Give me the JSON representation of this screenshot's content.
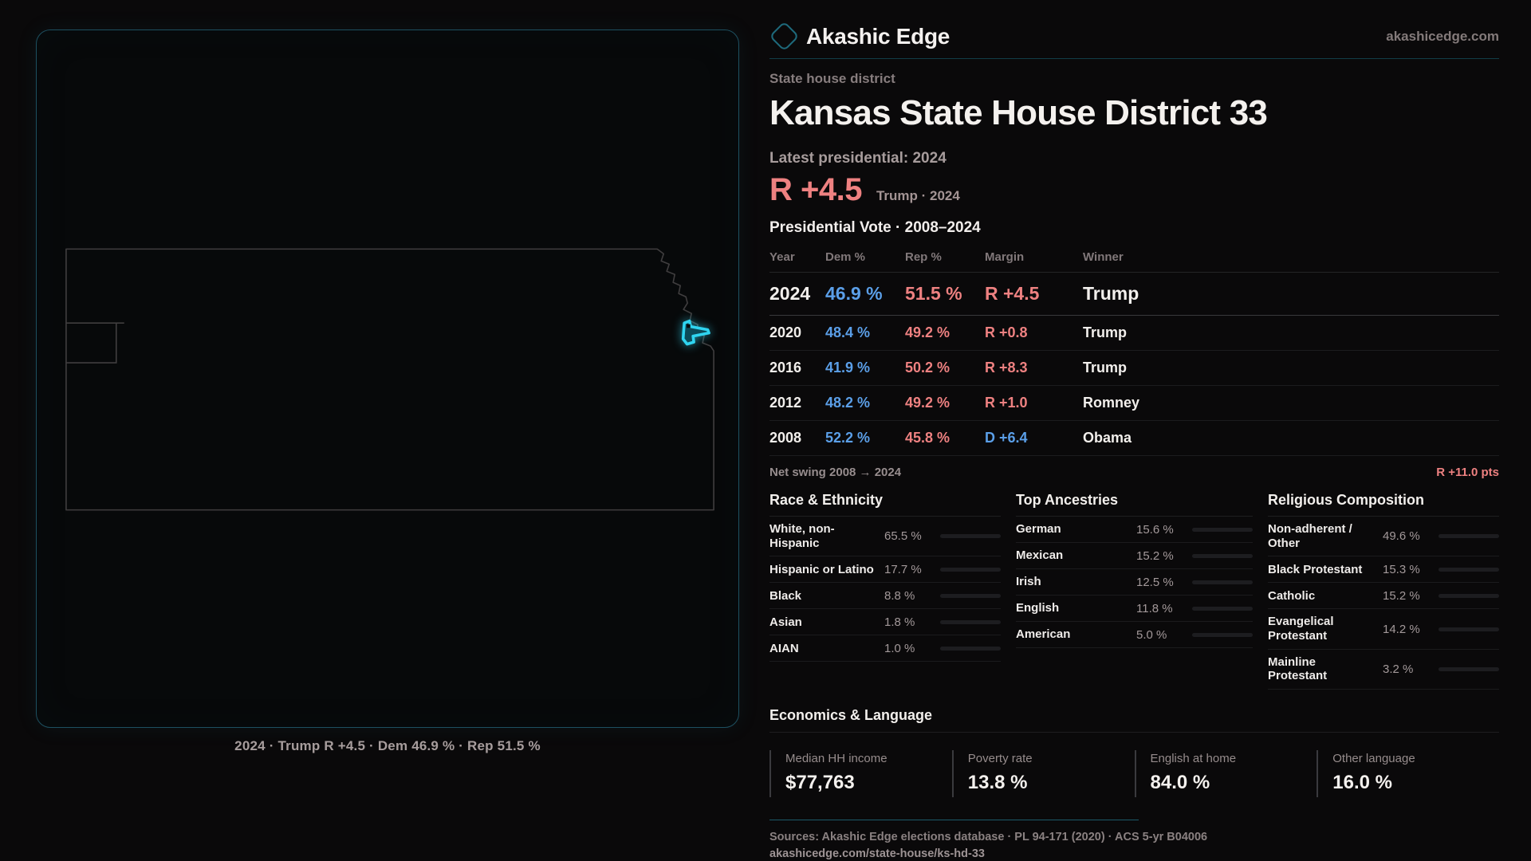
{
  "colors": {
    "dem": "#5b9fe8",
    "rep": "#ee8181",
    "accent": "#2fd4f0",
    "rule_teal": "#123d47",
    "margin_red": "#f17e7e"
  },
  "site": {
    "brand": "Akashic Edge",
    "domain": "akashicedge.com"
  },
  "header": {
    "eyebrow": "State house district",
    "title": "Kansas State House District 33",
    "latest_label": "Latest presidential: 2024",
    "margin_value": "R +4.5",
    "margin_detail": "Trump · 2024"
  },
  "map": {
    "caption": "2024 · Trump R +4.5 · Dem 46.9 % · Rep 51.5 %",
    "state_name": "Kansas",
    "district_color": "#2fd4f0",
    "outline_color": "#403e3f"
  },
  "vote_table": {
    "title": "Presidential Vote · 2008–2024",
    "columns": [
      "Year",
      "Dem %",
      "Rep %",
      "Margin",
      "Winner"
    ],
    "rows": [
      {
        "year": "2024",
        "dem": "46.9 %",
        "rep": "51.5 %",
        "margin": "R +4.5",
        "winner": "Trump"
      },
      {
        "year": "2020",
        "dem": "48.4 %",
        "rep": "49.2 %",
        "margin": "R +0.8",
        "winner": "Trump"
      },
      {
        "year": "2016",
        "dem": "41.9 %",
        "rep": "50.2 %",
        "margin": "R +8.3",
        "winner": "Trump"
      },
      {
        "year": "2012",
        "dem": "48.2 %",
        "rep": "49.2 %",
        "margin": "R +1.0",
        "winner": "Romney"
      },
      {
        "year": "2008",
        "dem": "52.2 %",
        "rep": "45.8 %",
        "margin": "D +6.4",
        "winner": "Obama"
      }
    ],
    "net_swing_label": "Net swing 2008 → 2024",
    "net_swing_value": "R +11.0 pts"
  },
  "demographics": [
    {
      "title": "Race & Ethnicity",
      "rows": [
        {
          "label": "White, non-Hispanic",
          "value": "65.5 %",
          "pct": 65.5,
          "color": "#a9bccf"
        },
        {
          "label": "Hispanic or Latino",
          "value": "17.7 %",
          "pct": 17.7,
          "color": "#e3a43b"
        },
        {
          "label": "Black",
          "value": "8.8 %",
          "pct": 8.8,
          "color": "#8f7ce8"
        },
        {
          "label": "Asian",
          "value": "1.8 %",
          "pct": 1.8,
          "color": "#2fc9a8"
        },
        {
          "label": "AIAN",
          "value": "1.0 %",
          "pct": 1.0,
          "color": "#df7a35"
        }
      ]
    },
    {
      "title": "Top Ancestries",
      "rows": [
        {
          "label": "German",
          "value": "15.6 %",
          "pct": 15.6,
          "color": "#8fb4da"
        },
        {
          "label": "Mexican",
          "value": "15.2 %",
          "pct": 15.2,
          "color": "#e8a73c"
        },
        {
          "label": "Irish",
          "value": "12.5 %",
          "pct": 12.5,
          "color": "#8fb4da"
        },
        {
          "label": "English",
          "value": "11.8 %",
          "pct": 11.8,
          "color": "#8fb4da"
        },
        {
          "label": "American",
          "value": "5.0 %",
          "pct": 5.0,
          "color": "#8fa8c4"
        }
      ]
    },
    {
      "title": "Religious Composition",
      "rows": [
        {
          "label": "Non-adherent / Other",
          "value": "49.6 %",
          "pct": 49.6,
          "color": "#9099ab"
        },
        {
          "label": "Black Protestant",
          "value": "15.3 %",
          "pct": 15.3,
          "color": "#8f7ce8"
        },
        {
          "label": "Catholic",
          "value": "15.2 %",
          "pct": 15.2,
          "color": "#e5c23a"
        },
        {
          "label": "Evangelical Protestant",
          "value": "14.2 %",
          "pct": 14.2,
          "color": "#e97a7a"
        },
        {
          "label": "Mainline Protestant",
          "value": "3.2 %",
          "pct": 3.2,
          "color": "#4a8fe8"
        }
      ]
    }
  ],
  "economics": {
    "title": "Economics & Language",
    "stats": [
      {
        "label": "Median HH income",
        "value": "$77,763"
      },
      {
        "label": "Poverty rate",
        "value": "13.8 %"
      },
      {
        "label": "English at home",
        "value": "84.0 %"
      },
      {
        "label": "Other language",
        "value": "16.0 %"
      }
    ]
  },
  "footer": {
    "sources": "Sources: Akashic Edge elections database · PL 94-171 (2020) · ACS 5-yr B04006",
    "permalink": "akashicedge.com/state-house/ks-hd-33"
  },
  "chart_data": [
    {
      "type": "table",
      "title": "Presidential Vote · 2008–2024",
      "columns": [
        "Year",
        "Dem %",
        "Rep %",
        "Margin",
        "Winner"
      ],
      "rows": [
        [
          "2024",
          46.9,
          51.5,
          "R +4.5",
          "Trump"
        ],
        [
          "2020",
          48.4,
          49.2,
          "R +0.8",
          "Trump"
        ],
        [
          "2016",
          41.9,
          50.2,
          "R +8.3",
          "Trump"
        ],
        [
          "2012",
          48.2,
          49.2,
          "R +1.0",
          "Romney"
        ],
        [
          "2008",
          52.2,
          45.8,
          "D +6.4",
          "Obama"
        ]
      ],
      "net_swing": "R +11.0 pts"
    },
    {
      "type": "bar",
      "title": "Race & Ethnicity",
      "categories": [
        "White, non-Hispanic",
        "Hispanic or Latino",
        "Black",
        "Asian",
        "AIAN"
      ],
      "values": [
        65.5,
        17.7,
        8.8,
        1.8,
        1.0
      ],
      "xlim": [
        0,
        100
      ]
    },
    {
      "type": "bar",
      "title": "Top Ancestries",
      "categories": [
        "German",
        "Mexican",
        "Irish",
        "English",
        "American"
      ],
      "values": [
        15.6,
        15.2,
        12.5,
        11.8,
        5.0
      ],
      "xlim": [
        0,
        100
      ]
    },
    {
      "type": "bar",
      "title": "Religious Composition",
      "categories": [
        "Non-adherent / Other",
        "Black Protestant",
        "Catholic",
        "Evangelical Protestant",
        "Mainline Protestant"
      ],
      "values": [
        49.6,
        15.3,
        15.2,
        14.2,
        3.2
      ],
      "xlim": [
        0,
        100
      ]
    }
  ]
}
